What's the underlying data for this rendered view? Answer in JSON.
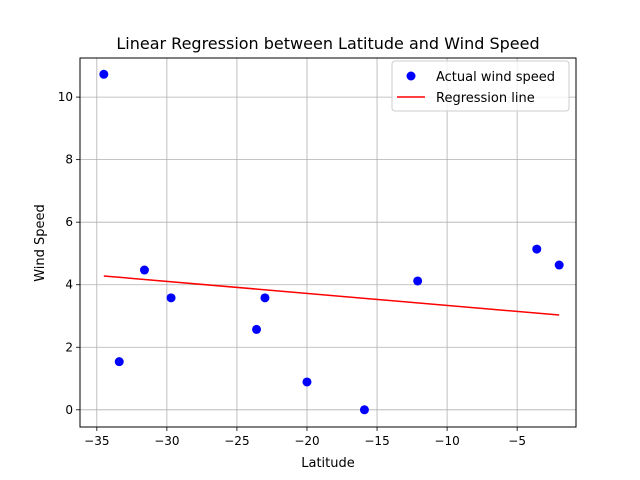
{
  "chart_data": {
    "type": "scatter",
    "title": "Linear Regression between Latitude and Wind Speed",
    "xlabel": "Latitude",
    "ylabel": "Wind Speed",
    "xlim": [
      -36.2,
      -0.8
    ],
    "ylim": [
      -0.55,
      11.25
    ],
    "grid": true,
    "legend_position": "top-right",
    "x_ticks": [
      -35,
      -30,
      -25,
      -20,
      -15,
      -10,
      -5
    ],
    "x_tick_labels": [
      "−35",
      "−30",
      "−25",
      "−20",
      "−15",
      "−10",
      "−5"
    ],
    "y_ticks": [
      0,
      2,
      4,
      6,
      8,
      10
    ],
    "y_tick_labels": [
      "0",
      "2",
      "4",
      "6",
      "8",
      "10"
    ],
    "series": [
      {
        "name": "Actual wind speed",
        "kind": "scatter",
        "color": "#0000ff",
        "x": [
          -34.5,
          -33.4,
          -31.6,
          -29.7,
          -23.6,
          -23.0,
          -20.0,
          -15.9,
          -12.1,
          -3.6,
          -2.0
        ],
        "y": [
          10.73,
          1.54,
          4.47,
          3.58,
          2.57,
          3.58,
          0.89,
          0.0,
          4.12,
          5.14,
          4.63
        ]
      },
      {
        "name": "Regression line",
        "kind": "line",
        "color": "#ff0000",
        "x": [
          -34.5,
          -2.0
        ],
        "y": [
          4.28,
          3.03
        ]
      }
    ]
  }
}
